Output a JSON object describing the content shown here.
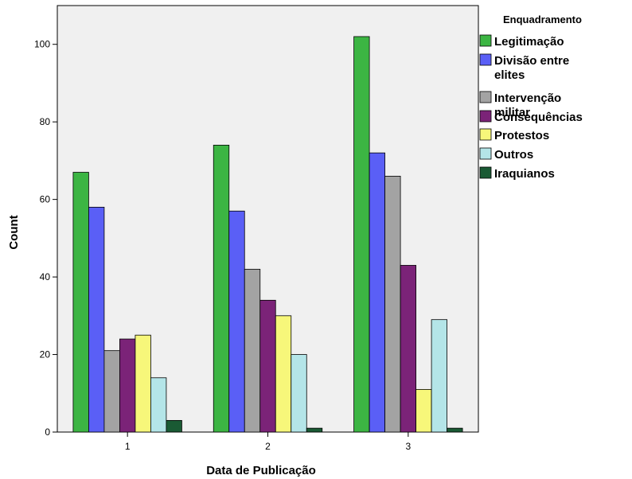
{
  "chart_data": {
    "type": "bar",
    "xlabel": "Data de Publicação",
    "ylabel": "Count",
    "categories": [
      "1",
      "2",
      "3"
    ],
    "ylim": [
      0,
      110
    ],
    "yticks": [
      0,
      20,
      40,
      60,
      80,
      100
    ],
    "grid": false,
    "legend": {
      "title": "Enquadramento",
      "placement": "right"
    },
    "plot_background": "#f0f0f0",
    "series": [
      {
        "name": "Legitimação",
        "color": "#3cb543",
        "values": [
          67,
          74,
          102
        ]
      },
      {
        "name": "Divisão entre elites",
        "color": "#5a5ff6",
        "values": [
          58,
          57,
          72
        ]
      },
      {
        "name": "Intervenção militar",
        "color": "#a3a3a3",
        "values": [
          21,
          42,
          66
        ]
      },
      {
        "name": "Consequências",
        "color": "#7b2378",
        "values": [
          24,
          34,
          43
        ]
      },
      {
        "name": "Protestos",
        "color": "#f7f77a",
        "values": [
          25,
          30,
          11
        ]
      },
      {
        "name": "Outros",
        "color": "#b4e5e8",
        "values": [
          14,
          20,
          29
        ]
      },
      {
        "name": "Iraquianos",
        "color": "#1a5a34",
        "values": [
          3,
          1,
          1
        ]
      }
    ]
  }
}
